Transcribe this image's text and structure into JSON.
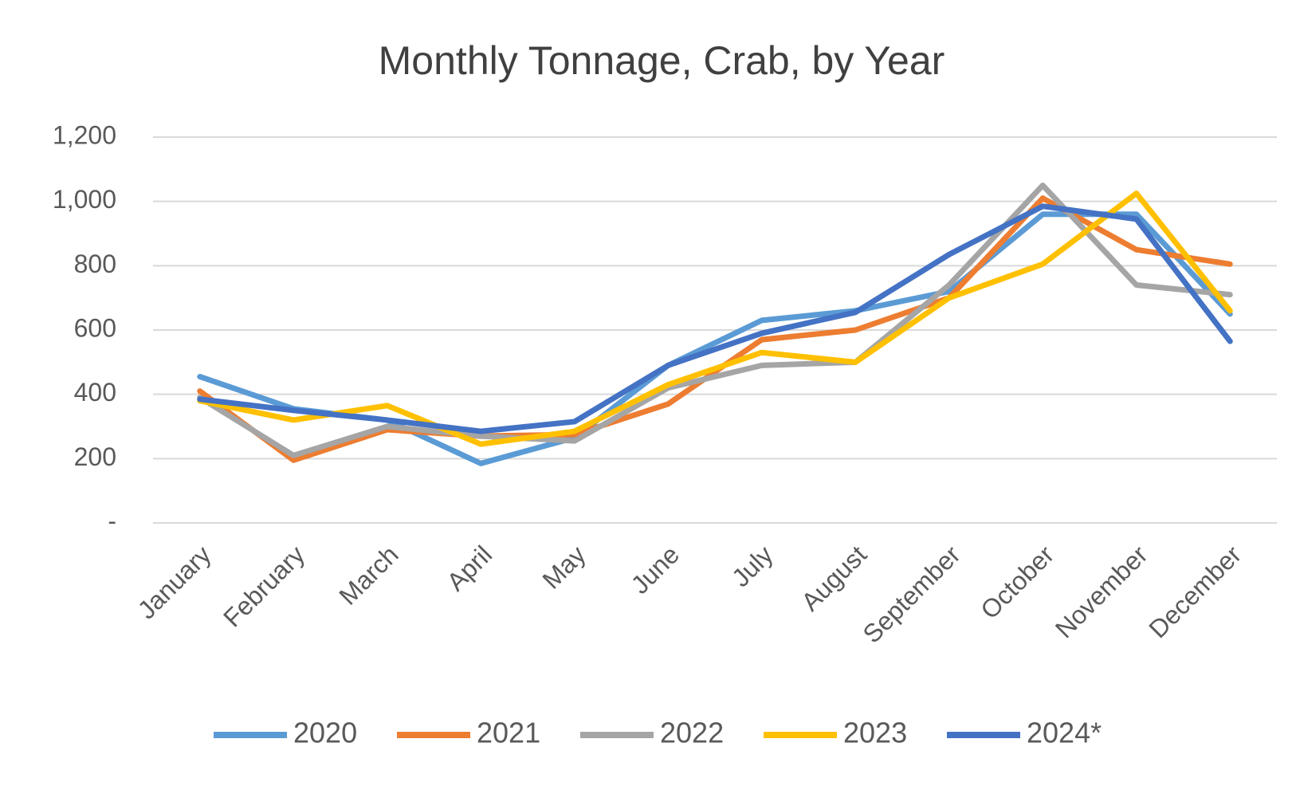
{
  "chart_data": {
    "type": "line",
    "title": "Monthly Tonnage, Crab, by Year",
    "categories": [
      "January",
      "February",
      "March",
      "April",
      "May",
      "June",
      "July",
      "August",
      "September",
      "October",
      "November",
      "December"
    ],
    "series": [
      {
        "name": "2020",
        "color": "#5b9bd5",
        "values": [
          455,
          355,
          320,
          185,
          265,
          490,
          630,
          660,
          720,
          960,
          960,
          650
        ]
      },
      {
        "name": "2021",
        "color": "#ed7d31",
        "values": [
          410,
          195,
          290,
          270,
          275,
          370,
          570,
          600,
          700,
          1010,
          850,
          805
        ]
      },
      {
        "name": "2022",
        "color": "#a5a5a5",
        "values": [
          390,
          210,
          300,
          270,
          255,
          420,
          490,
          500,
          740,
          1050,
          740,
          710
        ]
      },
      {
        "name": "2023",
        "color": "#ffc000",
        "values": [
          380,
          320,
          365,
          245,
          285,
          430,
          530,
          500,
          700,
          805,
          1025,
          660
        ]
      },
      {
        "name": "2024*",
        "color": "#4472c4",
        "values": [
          385,
          350,
          320,
          285,
          315,
          490,
          590,
          655,
          835,
          985,
          945,
          565
        ]
      }
    ],
    "ylim": [
      0,
      1200
    ],
    "yticks": [
      {
        "value": 0,
        "label": "-"
      },
      200,
      400,
      600,
      800,
      {
        "value": 1000,
        "label": "1,000"
      },
      {
        "value": 1200,
        "label": "1,200"
      }
    ],
    "grid": true,
    "legend": "bottom"
  }
}
